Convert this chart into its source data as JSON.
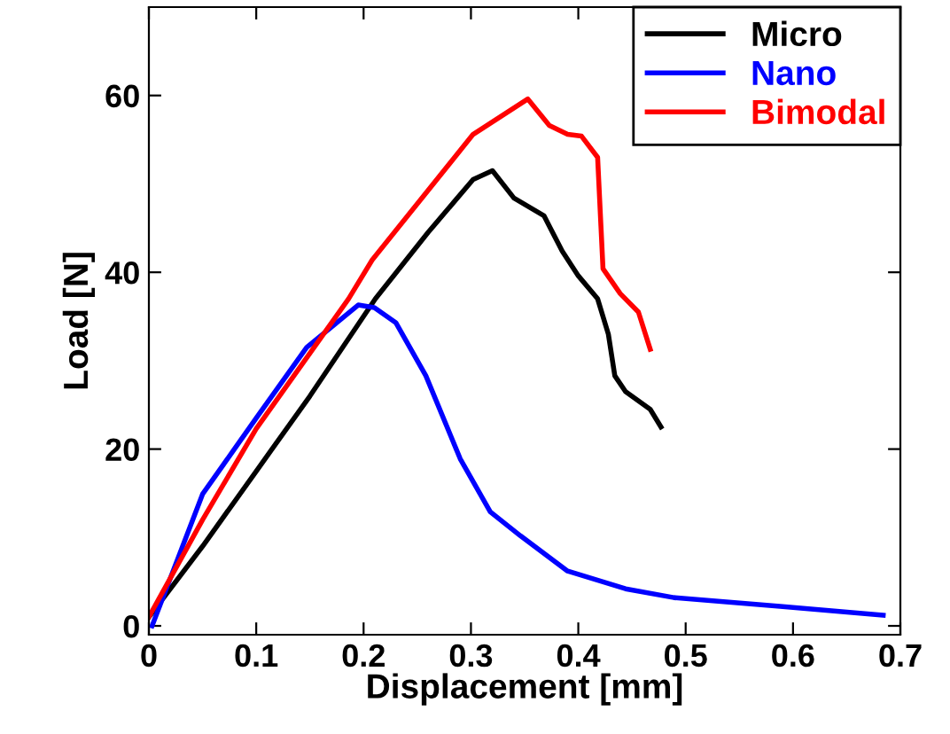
{
  "chart_data": {
    "type": "line",
    "xlabel": "Displacement [mm]",
    "ylabel": "Load [N]",
    "xlim": [
      0,
      0.7
    ],
    "ylim": [
      -1,
      70
    ],
    "xticks": [
      0,
      0.1,
      0.2,
      0.3,
      0.4,
      0.5,
      0.6,
      0.7
    ],
    "yticks": [
      0,
      20,
      40,
      60
    ],
    "grid": false,
    "legend": "top right",
    "marker": "none",
    "line_style": "solid",
    "series": [
      {
        "name": "Micro",
        "color": "#000000",
        "x": [
          0,
          0.05,
          0.1,
          0.15,
          0.211,
          0.26,
          0.302,
          0.32,
          0.34,
          0.368,
          0.385,
          0.4,
          0.418,
          0.428,
          0.434,
          0.444,
          0.467,
          0.477
        ],
        "values": [
          1,
          9,
          17.5,
          26,
          37,
          44.5,
          50.5,
          51.5,
          48.4,
          46.4,
          42.4,
          39.6,
          37,
          33,
          28.3,
          26.5,
          24.5,
          22.5
        ]
      },
      {
        "name": "Nano",
        "color": "#0000ff",
        "x": [
          0.003,
          0.05,
          0.1,
          0.147,
          0.195,
          0.21,
          0.23,
          0.258,
          0.29,
          0.318,
          0.346,
          0.39,
          0.444,
          0.489,
          0.588,
          0.684
        ],
        "values": [
          0,
          14.9,
          23.5,
          31.5,
          36.3,
          36,
          34.3,
          28.3,
          18.9,
          12.9,
          10.2,
          6.2,
          4.2,
          3.2,
          2.2,
          1.2
        ]
      },
      {
        "name": "Bimodal",
        "color": "#ff0000",
        "x": [
          0,
          0.05,
          0.1,
          0.186,
          0.208,
          0.302,
          0.353,
          0.373,
          0.39,
          0.403,
          0.418,
          0.423,
          0.439,
          0.456,
          0.467
        ],
        "values": [
          1,
          12,
          22.3,
          37,
          41.4,
          55.6,
          59.6,
          56.6,
          55.6,
          55.4,
          53,
          40.4,
          37.6,
          35.5,
          31.3
        ]
      }
    ]
  }
}
